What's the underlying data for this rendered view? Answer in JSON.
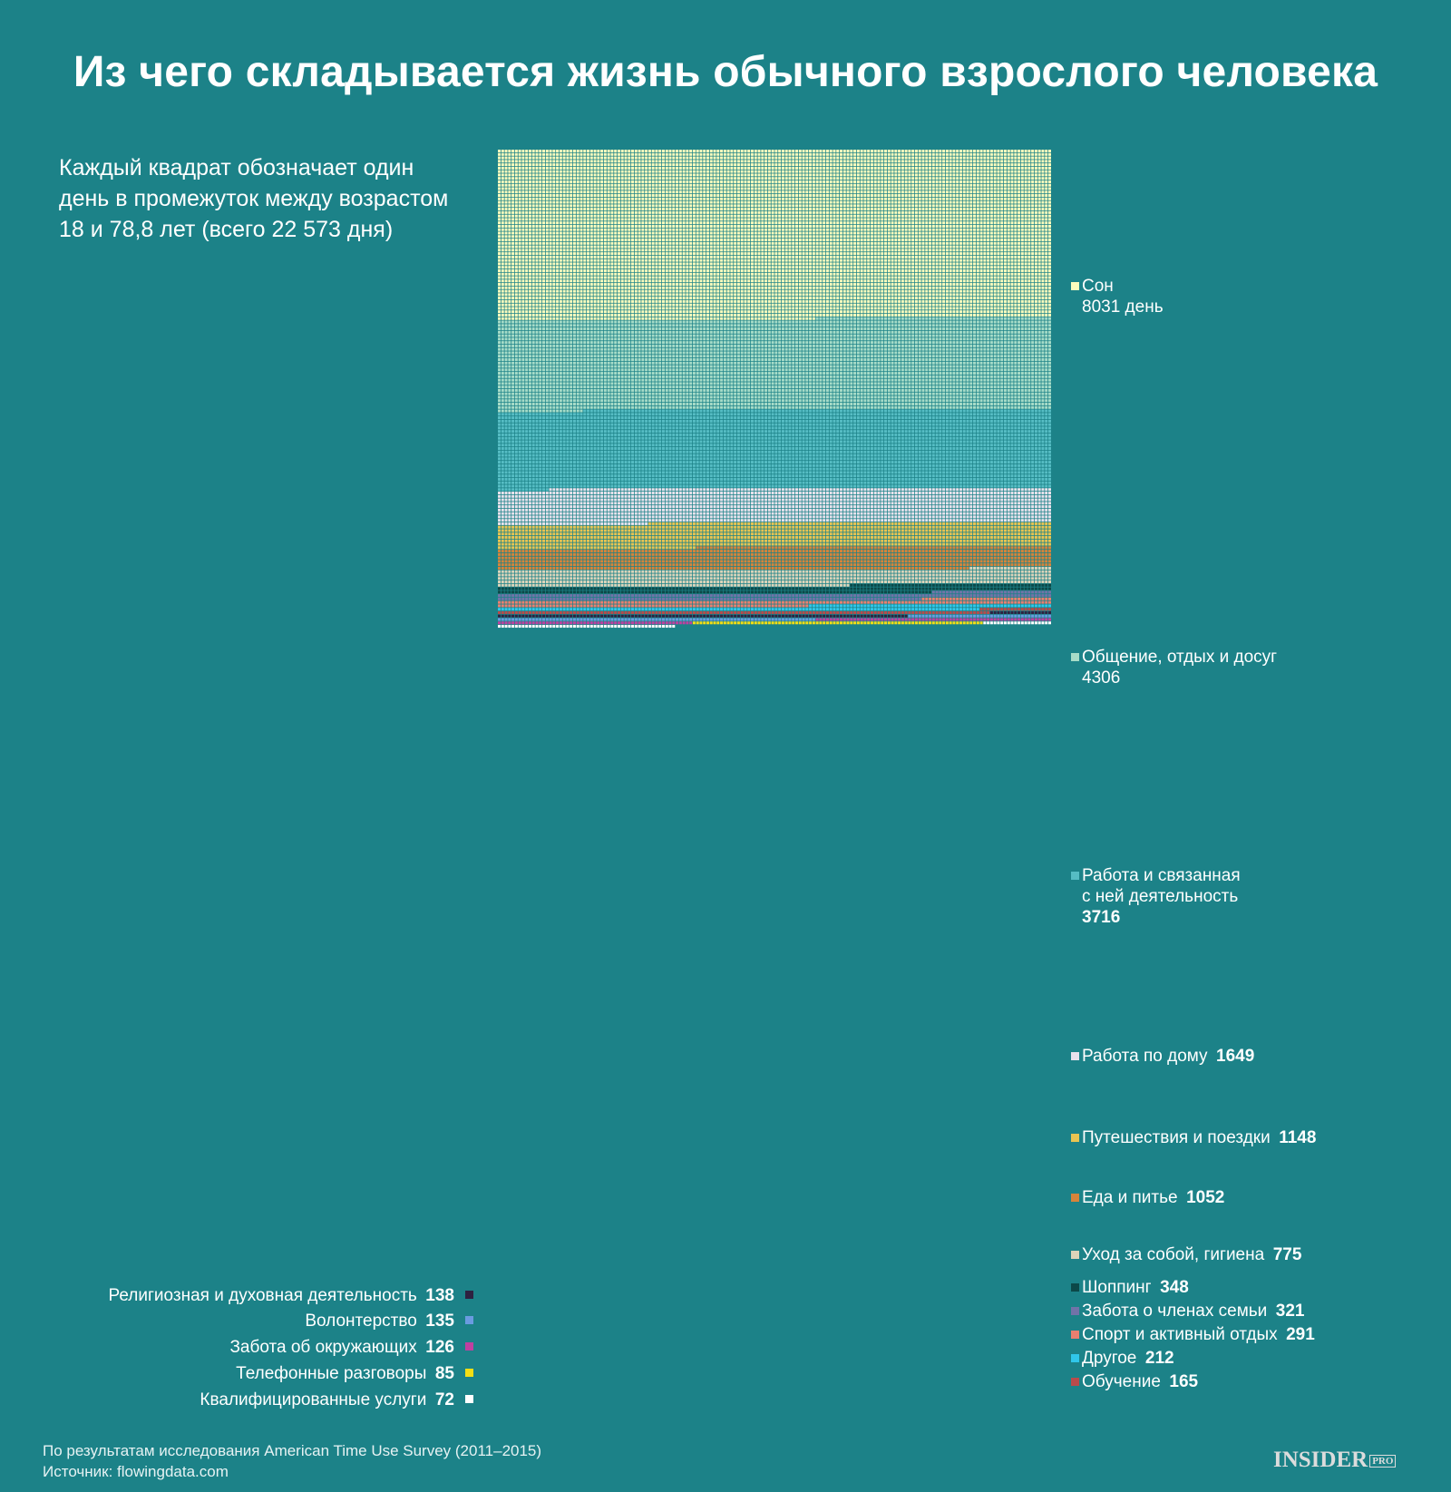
{
  "title": "Из чего складывается жизнь обычного взрослого человека",
  "subtitle": "Каждый квадрат обозначает один день в промежуток между возрастом 18 и 78,8 лет (всего 22 573 дня)",
  "footer": {
    "line1": "По результатам исследования American Time Use Survey (2011–2015)",
    "line2": "Источник: flowingdata.com"
  },
  "brand": {
    "name": "INSIDER",
    "suffix": "PRO"
  },
  "chart_data": {
    "type": "waffle",
    "unit": "day",
    "total": 22573,
    "categories": [
      {
        "name": "Сон",
        "value": 8031,
        "value_label": "8031 день",
        "color": "#fdfcbd"
      },
      {
        "name": "Общение, отдых и досуг",
        "value": 4306,
        "value_label": "4306",
        "color": "#a7dcc8"
      },
      {
        "name": "Работа и связанная с ней деятельность",
        "value": 3716,
        "value_label": "3716",
        "color": "#56bdc4"
      },
      {
        "name": "Работа по дому",
        "value": 1649,
        "value_label": "1649",
        "color": "#e8e2ec"
      },
      {
        "name": "Путешествия и поездки",
        "value": 1148,
        "value_label": "1148",
        "color": "#e9c452"
      },
      {
        "name": "Еда и питье",
        "value": 1052,
        "value_label": "1052",
        "color": "#d6843a"
      },
      {
        "name": "Уход за собой, гигиена",
        "value": 775,
        "value_label": "775",
        "color": "#dbd4ba"
      },
      {
        "name": "Шоппинг",
        "value": 348,
        "value_label": "348",
        "color": "#0c4848"
      },
      {
        "name": "Забота о членах семьи",
        "value": 321,
        "value_label": "321",
        "color": "#7173a8"
      },
      {
        "name": "Спорт и активный отдых",
        "value": 291,
        "value_label": "291",
        "color": "#ea7f70"
      },
      {
        "name": "Другое",
        "value": 212,
        "value_label": "212",
        "color": "#30c7ea"
      },
      {
        "name": "Обучение",
        "value": 165,
        "value_label": "165",
        "color": "#b84b4b"
      },
      {
        "name": "Религиозная и духовная деятельность",
        "value": 138,
        "value_label": "138",
        "color": "#2e2140"
      },
      {
        "name": "Волонтерство",
        "value": 135,
        "value_label": "135",
        "color": "#6a9be0"
      },
      {
        "name": "Забота об окружающих",
        "value": 126,
        "value_label": "126",
        "color": "#c040a0"
      },
      {
        "name": "Телефонные разговоры",
        "value": 85,
        "value_label": "85",
        "color": "#f4de14"
      },
      {
        "name": "Квалифицированные услуги",
        "value": 72,
        "value_label": "72",
        "color": "#ffffff"
      }
    ]
  }
}
